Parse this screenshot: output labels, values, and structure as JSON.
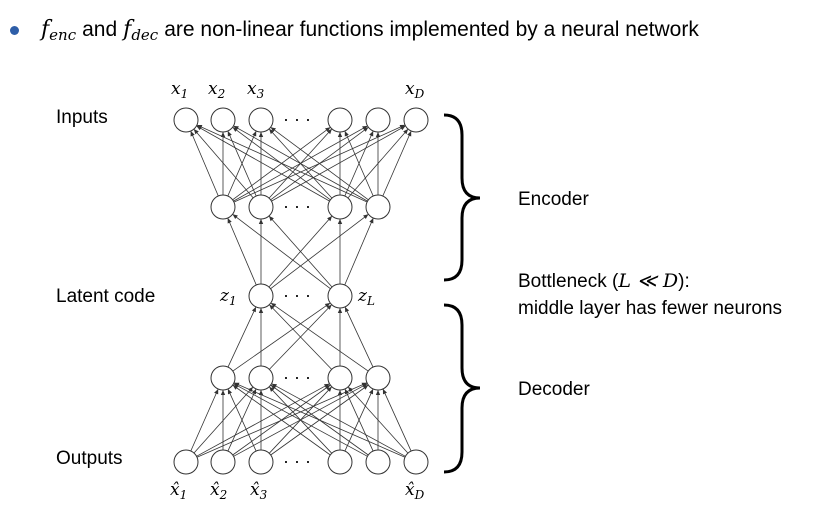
{
  "bullet": {
    "f_enc_base": "f",
    "f_enc_sub": "enc",
    "and_text": "and",
    "f_dec_base": "f",
    "f_dec_sub": "dec",
    "rest_text": "are non-linear functions implemented by a neural network"
  },
  "labels": {
    "inputs": "Inputs",
    "latent_code": "Latent code",
    "outputs": "Outputs",
    "encoder": "Encoder",
    "decoder": "Decoder",
    "bottleneck_prefix": "Bottleneck (",
    "bottleneck_math": "L ≪ D",
    "bottleneck_suffix": "):",
    "bottleneck_detail": "middle layer has fewer neurons"
  },
  "network": {
    "ellipsis": "· · ·",
    "input_vars": [
      {
        "base": "x",
        "sub": "1"
      },
      {
        "base": "x",
        "sub": "2"
      },
      {
        "base": "x",
        "sub": "3"
      },
      {
        "base": "x",
        "sub": "D"
      }
    ],
    "latent_vars": [
      {
        "base": "z",
        "sub": "1"
      },
      {
        "base": "z",
        "sub": "L"
      }
    ],
    "output_vars": [
      {
        "base": "x̂",
        "sub": "1"
      },
      {
        "base": "x̂",
        "sub": "2"
      },
      {
        "base": "x̂",
        "sub": "3"
      },
      {
        "base": "x̂",
        "sub": "D"
      }
    ]
  }
}
